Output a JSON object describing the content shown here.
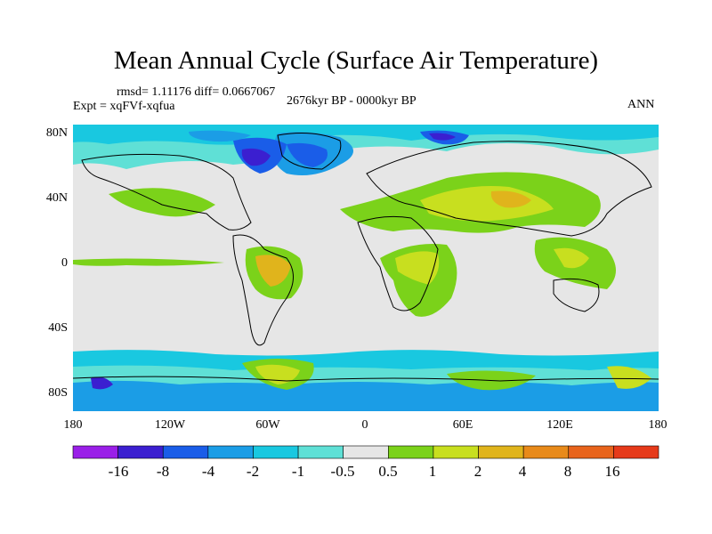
{
  "title": "Mean Annual Cycle (Surface Air Temperature)",
  "stats": "rmsd= 1.11176 diff= 0.0667067",
  "experiment": "Expt = xqFVf-xqfua",
  "period": "2676kyr BP - 0000kyr BP",
  "season": "ANN",
  "lat_labels": [
    "80N",
    "40N",
    "0",
    "40S",
    "80S"
  ],
  "lon_labels": [
    "180",
    "120W",
    "60W",
    "0",
    "60E",
    "120E",
    "180"
  ],
  "colorbar": {
    "labels": [
      "-16",
      "-8",
      "-4",
      "-2",
      "-1",
      "-0.5",
      "0.5",
      "1",
      "2",
      "4",
      "8",
      "16"
    ],
    "colors": [
      "#9a1fe8",
      "#3b1fd0",
      "#1a5de8",
      "#1b9de6",
      "#19c8e0",
      "#5fe0d6",
      "#e6e6e6",
      "#7bd21a",
      "#c8df1f",
      "#e0b41c",
      "#e88a1a",
      "#e8641c",
      "#e63a1a"
    ]
  },
  "chart_data": {
    "type": "heatmap",
    "title": "Mean Annual Cycle (Surface Air Temperature)",
    "variable": "Surface Air Temperature difference",
    "experiment": "xqFVf-xqfua",
    "period": "2676kyr BP - 0000kyr BP",
    "season": "ANN",
    "rmsd": 1.11176,
    "diff": 0.0667067,
    "x_range": [
      -180,
      180
    ],
    "y_range": [
      -90,
      90
    ],
    "contour_levels": [
      -16,
      -8,
      -4,
      -2,
      -1,
      -0.5,
      0.5,
      1,
      2,
      4,
      8,
      16
    ]
  }
}
